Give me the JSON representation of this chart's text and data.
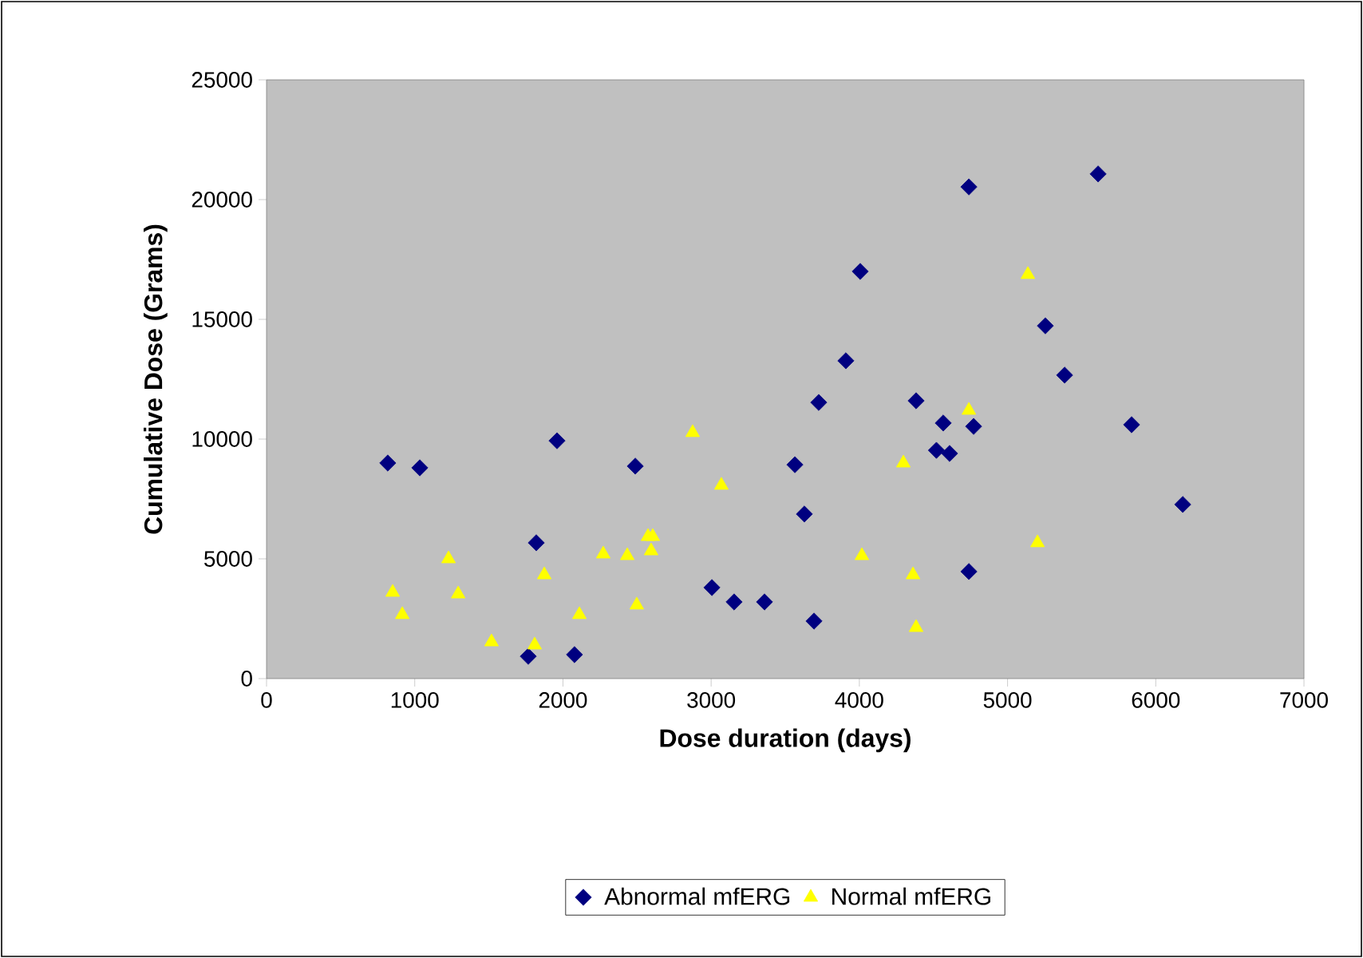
{
  "chart_data": {
    "type": "scatter",
    "xlabel": "Dose duration (days)",
    "ylabel": "Cumulative Dose (Grams)",
    "xlim": [
      0,
      7000
    ],
    "xticks": [
      0,
      1000,
      2000,
      3000,
      4000,
      5000,
      6000,
      7000
    ],
    "ylim": [
      0,
      25000
    ],
    "yticks": [
      0,
      5000,
      10000,
      15000,
      20000,
      25000
    ],
    "grid": false,
    "legend": "bottom",
    "series": [
      {
        "name": "Abnormal mfERG",
        "color": "#000080",
        "marker": "diamond",
        "x": [
          818,
          1034,
          1960,
          1820,
          1766,
          2078,
          2488,
          3005,
          3155,
          3360,
          3565,
          3629,
          3694,
          3726,
          3909,
          4006,
          4383,
          4566,
          4520,
          4609,
          4771,
          4739,
          4739,
          5611,
          5255,
          5385,
          5837,
          6182
        ],
        "values": [
          9000,
          8800,
          9930,
          5670,
          930,
          1000,
          8870,
          3800,
          3200,
          3200,
          8930,
          6870,
          2400,
          11530,
          13270,
          17000,
          11600,
          10670,
          9530,
          9400,
          10530,
          4470,
          20530,
          21070,
          14730,
          12670,
          10600,
          7270
        ]
      },
      {
        "name": "Normal mfERG",
        "color": "#ffff00",
        "marker": "triangle",
        "x": [
          1228,
          851,
          916,
          1293,
          1518,
          1809,
          1874,
          2111,
          2272,
          2434,
          2498,
          2574,
          2606,
          2595,
          2875,
          3069,
          4017,
          4297,
          4362,
          4383,
          4739,
          5137,
          5202
        ],
        "values": [
          5000,
          3600,
          2670,
          3530,
          1530,
          1400,
          4330,
          2670,
          5200,
          5130,
          3070,
          5930,
          5930,
          5330,
          10270,
          8070,
          5130,
          9000,
          4330,
          2130,
          11200,
          16870,
          5670
        ]
      }
    ]
  }
}
